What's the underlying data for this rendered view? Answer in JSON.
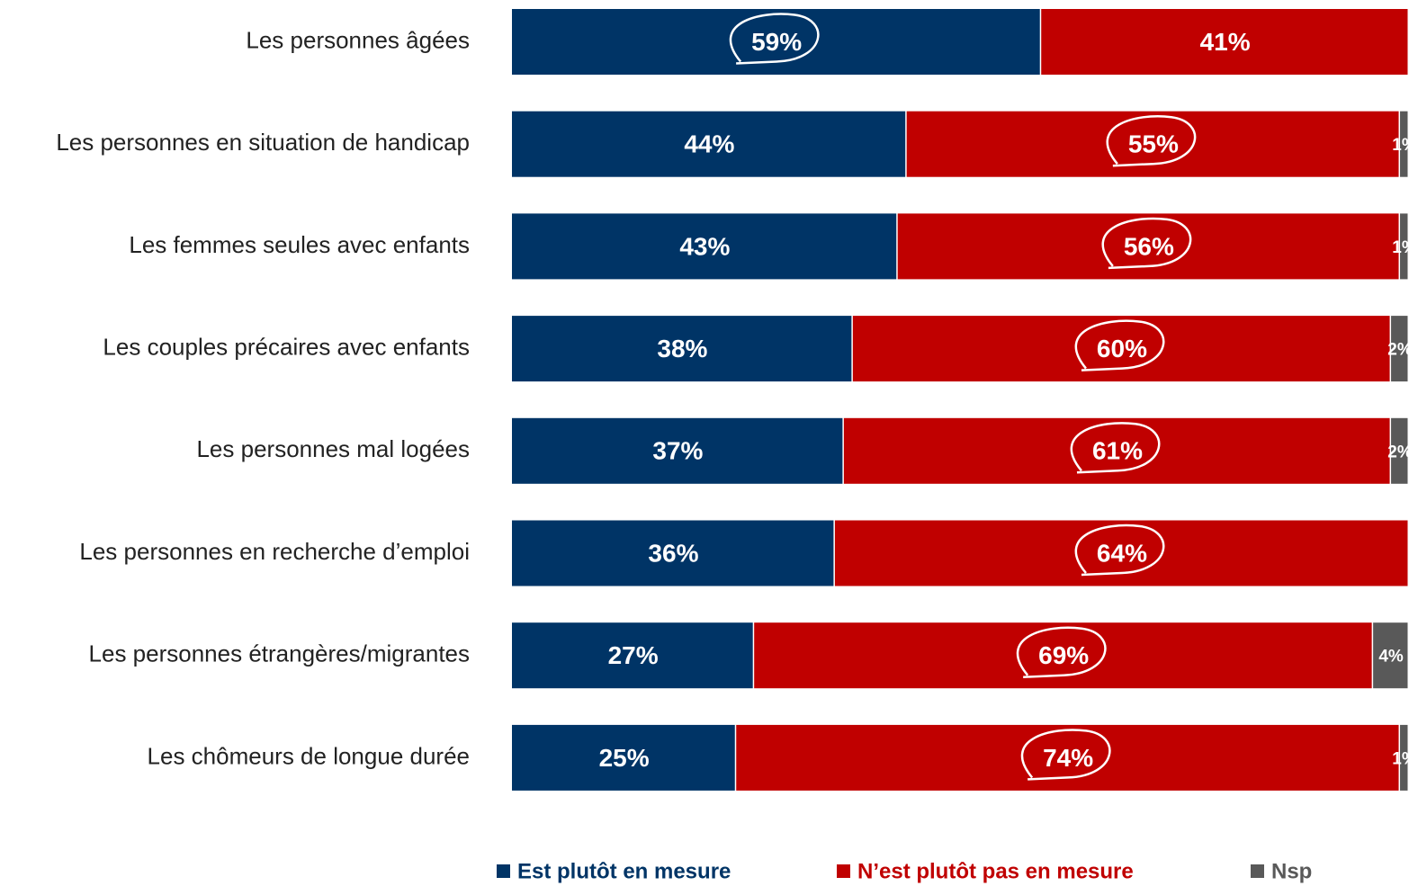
{
  "chart_data": {
    "type": "stacked_barh",
    "categories": [
      "Les personnes âgées",
      "Les personnes en situation de handicap",
      "Les femmes seules avec enfants",
      "Les couples précaires avec enfants",
      "Les personnes mal logées",
      "Les personnes en recherche d’emploi",
      "Les personnes étrangères/migrantes",
      "Les chômeurs de longue durée"
    ],
    "series": [
      {
        "name": "Est plutôt en mesure",
        "color": "#003466",
        "values": [
          59,
          44,
          43,
          38,
          37,
          36,
          27,
          25
        ],
        "value_labels": [
          "59%",
          "44%",
          "43%",
          "38%",
          "37%",
          "36%",
          "27%",
          "25%"
        ]
      },
      {
        "name": "N’est plutôt pas en mesure",
        "color": "#c00000",
        "values": [
          41,
          55,
          56,
          60,
          61,
          64,
          69,
          74
        ],
        "value_labels": [
          "41%",
          "55%",
          "56%",
          "60%",
          "61%",
          "64%",
          "69%",
          "74%"
        ]
      },
      {
        "name": "Nsp",
        "color": "#595959",
        "values": [
          null,
          1,
          1,
          2,
          2,
          null,
          4,
          1
        ],
        "value_labels": [
          null,
          "1%",
          "1%",
          "2%",
          "2%",
          null,
          "4%",
          "1%"
        ]
      }
    ],
    "xlim": [
      0,
      100
    ],
    "legend": "bottom"
  }
}
